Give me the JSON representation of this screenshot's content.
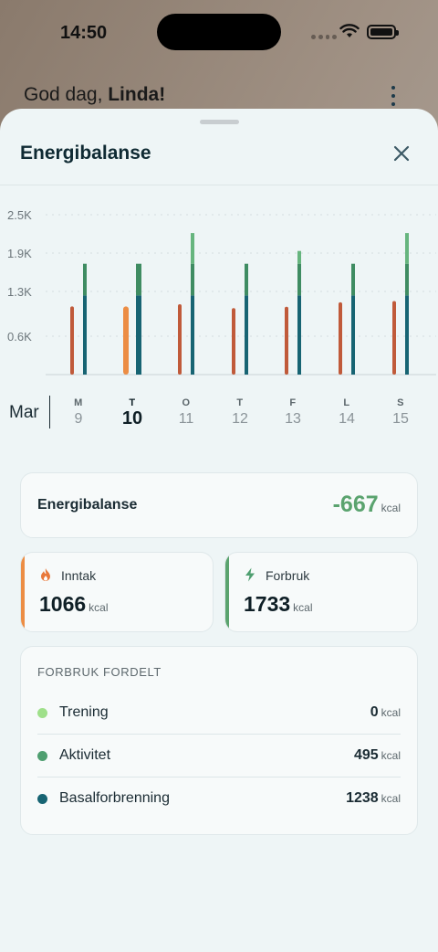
{
  "status": {
    "time": "14:50"
  },
  "greeting": {
    "prefix": "God dag, ",
    "name": "Linda!"
  },
  "sheet": {
    "title": "Energibalanse"
  },
  "chart_data": {
    "type": "bar",
    "y_ticks": [
      "2.5K",
      "1.9K",
      "1.3K",
      "0.6K"
    ],
    "ylim": [
      0,
      2500
    ],
    "categories": [
      "M 9",
      "T 10",
      "O 11",
      "T 12",
      "F 13",
      "L 14",
      "S 15"
    ],
    "selected_index": 1,
    "series": [
      {
        "values": [
          1066,
          1066,
          1100,
          1040,
          1060,
          1130,
          1150
        ]
      },
      {
        "values": [
          1238,
          1238,
          1238,
          1238,
          1238,
          1238,
          1238
        ]
      },
      {
        "values": [
          495,
          495,
          495,
          495,
          495,
          495,
          495
        ]
      },
      {
        "values": [
          0,
          0,
          480,
          0,
          200,
          0,
          480
        ]
      }
    ],
    "colors": {
      "intake": "#c05a3a",
      "intake_selected": "#ec8d44",
      "basal": "#176473",
      "activity": "#3f8c62",
      "training": "#66b57e"
    }
  },
  "days": {
    "month": "Mar",
    "items": [
      {
        "letter": "M",
        "num": "9"
      },
      {
        "letter": "T",
        "num": "10"
      },
      {
        "letter": "O",
        "num": "11"
      },
      {
        "letter": "T",
        "num": "12"
      },
      {
        "letter": "F",
        "num": "13"
      },
      {
        "letter": "L",
        "num": "14"
      },
      {
        "letter": "S",
        "num": "15"
      }
    ]
  },
  "balance": {
    "label": "Energibalanse",
    "value": "-667",
    "unit": "kcal"
  },
  "intake": {
    "label": "Inntak",
    "value": "1066",
    "unit": "kcal",
    "color": "#ec8d44"
  },
  "burn": {
    "label": "Forbruk",
    "value": "1733",
    "unit": "kcal",
    "color": "#5aa36e"
  },
  "distribution": {
    "heading": "FORBRUK FORDELT",
    "rows": [
      {
        "label": "Trening",
        "value": "0",
        "unit": "kcal",
        "color": "#9fe08a"
      },
      {
        "label": "Aktivitet",
        "value": "495",
        "unit": "kcal",
        "color": "#4f9f70"
      },
      {
        "label": "Basalforbrenning",
        "value": "1238",
        "unit": "kcal",
        "color": "#176473"
      }
    ]
  }
}
